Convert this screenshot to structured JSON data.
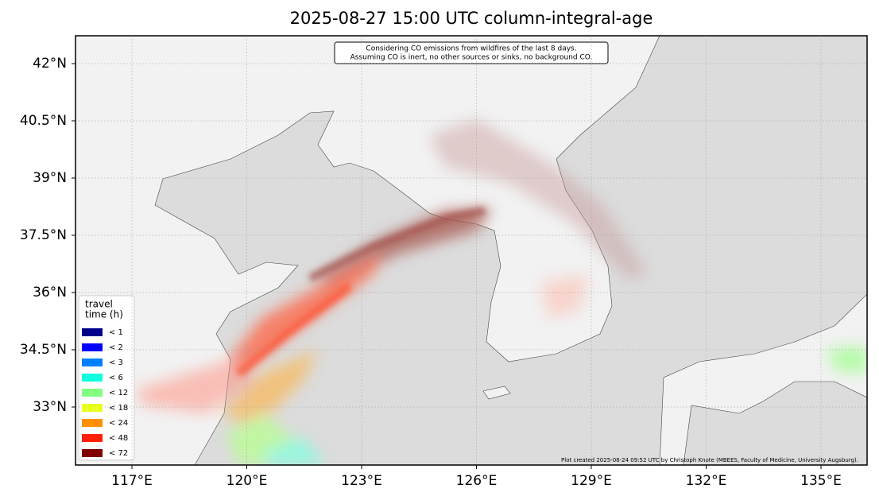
{
  "map": {
    "title": "2025-08-27 15:00 UTC column-integral-age",
    "note": [
      "Considering CO emissions from wildfires of the last 8 days.",
      "Assuming CO is inert, no other sources or sinks, no background CO."
    ],
    "lon_labels": [
      "117°E",
      "120°E",
      "123°E",
      "126°E",
      "129°E",
      "132°E",
      "135°E"
    ],
    "lat_labels": [
      "42°N",
      "40.5°N",
      "39°N",
      "37.5°N",
      "36°N",
      "34.5°N",
      "33°N"
    ],
    "legend": {
      "title": [
        "travel",
        "time (h)"
      ],
      "items": [
        {
          "label": "< 1",
          "color": "#00008b"
        },
        {
          "label": "< 2",
          "color": "#0000ff"
        },
        {
          "label": "< 3",
          "color": "#0080ff"
        },
        {
          "label": "< 6",
          "color": "#10ffe0"
        },
        {
          "label": "< 12",
          "color": "#80ff80"
        },
        {
          "label": "< 18",
          "color": "#e8ff20"
        },
        {
          "label": "< 24",
          "color": "#ff9000"
        },
        {
          "label": "< 48",
          "color": "#ff2000"
        },
        {
          "label": "< 72",
          "color": "#800000"
        }
      ]
    },
    "credit": "Plot created 2025-08-24 09:52 UTC by Christoph Knote (MBEES, Faculty of Medicine, University Augsburg)."
  }
}
